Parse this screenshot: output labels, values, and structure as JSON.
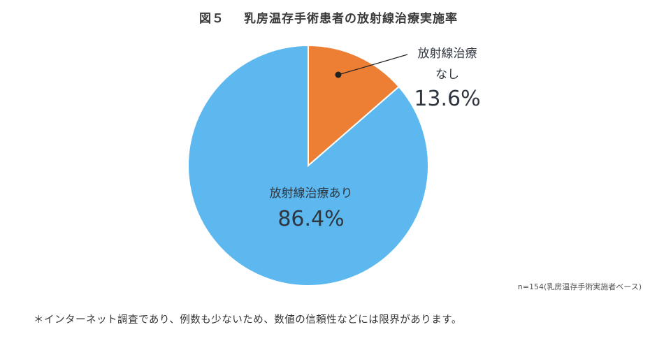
{
  "title": {
    "figure_no": "図５",
    "text": "乳房温存手術患者の放射線治療実施率"
  },
  "chart_data": {
    "type": "pie",
    "title": "図５　乳房温存手術患者の放射線治療実施率",
    "start_angle": "12 o'clock, clockwise",
    "slices": [
      {
        "label": "放射線治療なし",
        "value": 13.6,
        "display": "13.6%",
        "color": "#ec7f34"
      },
      {
        "label": "放射線治療あり",
        "value": 86.4,
        "display": "86.4%",
        "color": "#5cb8ee"
      }
    ],
    "annotations": [
      "n=154(乳房温存手術実施者ベース)"
    ]
  },
  "labels": {
    "no_line1": "放射線治療",
    "no_line2": "なし",
    "no_pct": "13.6%",
    "yes": "放射線治療あり",
    "yes_pct": "86.4%"
  },
  "base_note": "n=154(乳房温存手術実施者ベース)",
  "footnote": "＊インターネット調査であり、例数も少ないため、数値の信頼性などには限界があります。"
}
